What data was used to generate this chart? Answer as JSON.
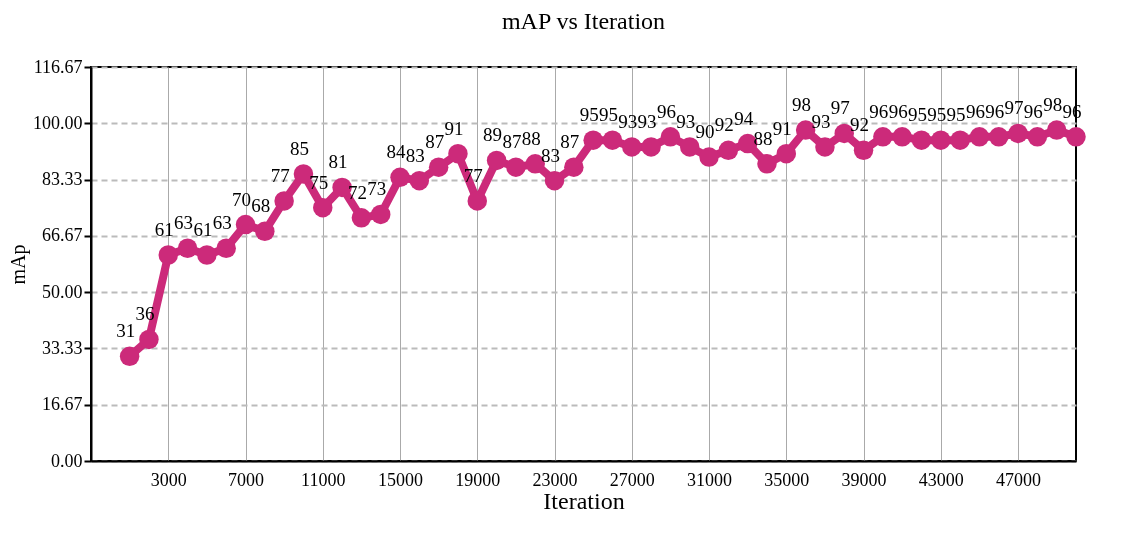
{
  "chart_data": {
    "type": "line",
    "title": "mAP vs Iteration",
    "xlabel": "Iteration",
    "ylabel": "mAp",
    "x": [
      1000,
      2000,
      3000,
      4000,
      5000,
      6000,
      7000,
      8000,
      9000,
      10000,
      11000,
      12000,
      13000,
      14000,
      15000,
      16000,
      17000,
      18000,
      19000,
      20000,
      21000,
      22000,
      23000,
      24000,
      25000,
      26000,
      27000,
      28000,
      29000,
      30000,
      31000,
      32000,
      33000,
      34000,
      35000,
      36000,
      37000,
      38000,
      39000,
      40000,
      41000,
      42000,
      43000,
      44000,
      45000,
      46000,
      47000,
      48000,
      49000,
      50000
    ],
    "series": [
      {
        "color": "#cc2a7a",
        "values": [
          31,
          36,
          61,
          63,
          61,
          63,
          70,
          68,
          77,
          85,
          75,
          81,
          72,
          73,
          84,
          83,
          87,
          91,
          77,
          89,
          87,
          88,
          83,
          87,
          95,
          95,
          93,
          93,
          96,
          93,
          90,
          92,
          94,
          88,
          91,
          98,
          93,
          97,
          92,
          96,
          96,
          95,
          95,
          95,
          96,
          96,
          97,
          96,
          98,
          96
        ]
      }
    ],
    "data_labels": true,
    "marker": "circle",
    "line_style": "solid",
    "grid": true,
    "xlim": [
      -1000,
      50000
    ],
    "xticks": [
      3000,
      7000,
      11000,
      15000,
      19000,
      23000,
      27000,
      31000,
      35000,
      39000,
      43000,
      47000
    ],
    "ylim": [
      0,
      116.67
    ],
    "yticks": [
      {
        "value": 0,
        "label": "0.00"
      },
      {
        "value": 16.67,
        "label": "16.67"
      },
      {
        "value": 33.33,
        "label": "33.33"
      },
      {
        "value": 50,
        "label": "50.00"
      },
      {
        "value": 66.67,
        "label": "66.67"
      },
      {
        "value": 83.33,
        "label": "83.33"
      },
      {
        "value": 100,
        "label": "100.00"
      },
      {
        "value": 116.67,
        "label": "116.67"
      }
    ]
  }
}
